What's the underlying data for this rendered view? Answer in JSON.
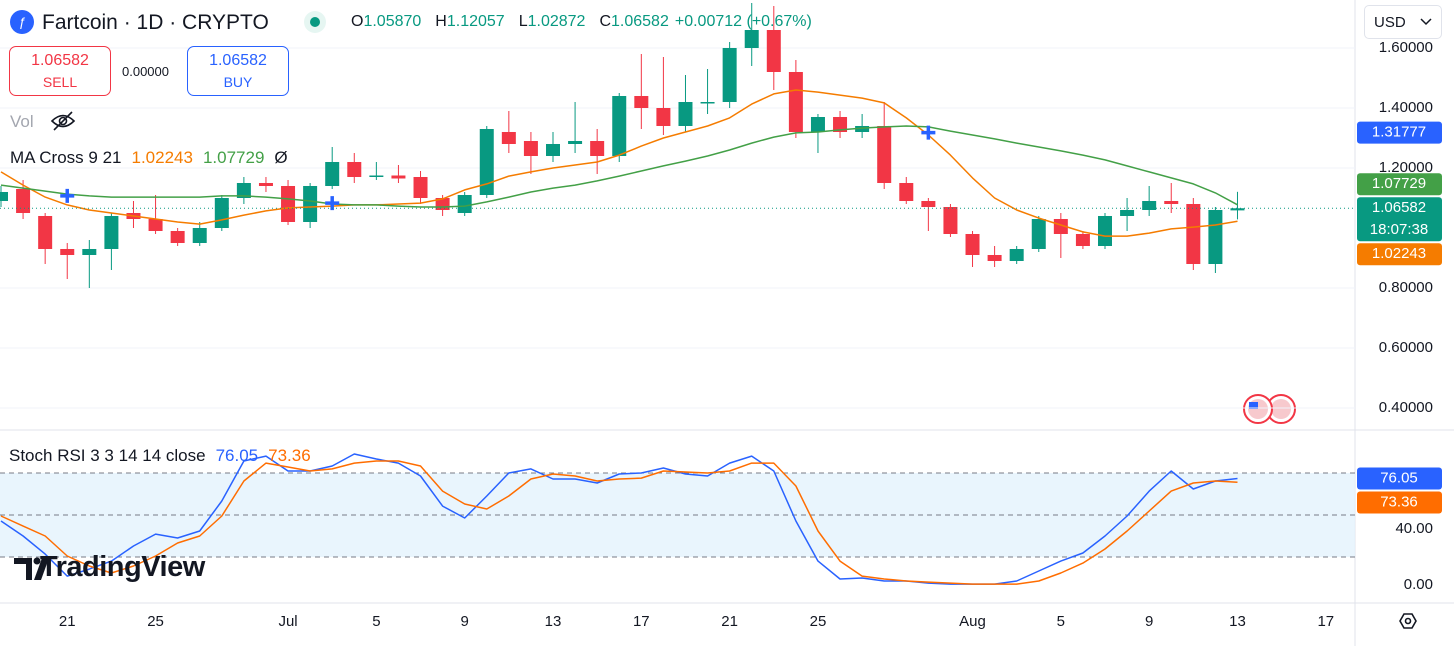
{
  "header": {
    "symbol": "Fartcoin · 1D · CRYPTO",
    "ohlc": [
      {
        "key": "O",
        "value": "1.05870"
      },
      {
        "key": "H",
        "value": "1.12057"
      },
      {
        "key": "L",
        "value": "1.02872"
      },
      {
        "key": "C",
        "value": "1.06582"
      }
    ],
    "change": "+0.00712 (+0.67%)"
  },
  "trade": {
    "sell_price": "1.06582",
    "sell_label": "SELL",
    "spread": "0.00000",
    "buy_price": "1.06582",
    "buy_label": "BUY"
  },
  "currency": "USD",
  "watermark": "TradingView",
  "chart_data": [
    {
      "type": "candlestick",
      "volume_label": "Vol",
      "indicator_label": "MA Cross 9 21",
      "indicator_suffix": "Ø",
      "categories": [
        null,
        null,
        null,
        "21",
        null,
        null,
        null,
        "25",
        null,
        null,
        null,
        null,
        null,
        "Jul",
        null,
        null,
        null,
        "5",
        null,
        null,
        null,
        "9",
        null,
        null,
        null,
        "13",
        null,
        null,
        null,
        "17",
        null,
        null,
        null,
        "21",
        null,
        null,
        null,
        "25",
        null,
        null,
        null,
        null,
        null,
        null,
        "Aug",
        null,
        null,
        null,
        "5",
        null,
        null,
        null,
        "9",
        null,
        null,
        null,
        "13",
        null,
        null,
        null,
        "17"
      ],
      "open": [
        1.09,
        1.13,
        1.04,
        0.93,
        0.91,
        0.93,
        1.05,
        1.03,
        0.99,
        0.95,
        1.0,
        1.1,
        1.15,
        1.14,
        1.02,
        1.14,
        1.22,
        1.17,
        1.175,
        1.17,
        1.1,
        1.05,
        1.11,
        1.32,
        1.29,
        1.24,
        1.28,
        1.29,
        1.24,
        1.44,
        1.4,
        1.34,
        1.415,
        1.42,
        1.6,
        1.66,
        1.52,
        1.32,
        1.37,
        1.32,
        1.34,
        1.15,
        1.09,
        1.07,
        0.98,
        0.91,
        0.89,
        0.93,
        1.03,
        0.98,
        0.94,
        1.04,
        1.06,
        1.09,
        1.08,
        0.88,
        1.0587,
        null,
        null,
        null,
        null
      ],
      "high": [
        1.14,
        1.16,
        1.05,
        0.95,
        0.96,
        1.05,
        1.09,
        1.11,
        1.0,
        1.02,
        1.11,
        1.17,
        1.17,
        1.16,
        1.15,
        1.27,
        1.25,
        1.22,
        1.21,
        1.19,
        1.11,
        1.12,
        1.34,
        1.39,
        1.32,
        1.32,
        1.42,
        1.33,
        1.45,
        1.58,
        1.57,
        1.51,
        1.53,
        1.62,
        1.75,
        1.74,
        1.56,
        1.38,
        1.39,
        1.38,
        1.42,
        1.17,
        1.1,
        1.08,
        0.99,
        0.94,
        0.94,
        1.04,
        1.05,
        0.99,
        1.05,
        1.1,
        1.14,
        1.15,
        1.1,
        1.07,
        1.12057,
        null,
        null,
        null,
        null
      ],
      "low": [
        1.07,
        1.03,
        0.88,
        0.83,
        0.8,
        0.86,
        1.0,
        0.98,
        0.94,
        0.94,
        0.99,
        1.08,
        1.12,
        1.01,
        1.0,
        1.13,
        1.15,
        1.16,
        1.15,
        1.08,
        1.04,
        1.04,
        1.1,
        1.25,
        1.18,
        1.22,
        1.25,
        1.18,
        1.22,
        1.33,
        1.31,
        1.32,
        1.38,
        1.4,
        1.54,
        1.46,
        1.3,
        1.25,
        1.3,
        1.3,
        1.13,
        1.08,
        0.99,
        0.97,
        0.87,
        0.87,
        0.88,
        0.92,
        0.9,
        0.93,
        0.93,
        0.99,
        1.04,
        1.05,
        0.86,
        0.85,
        1.02872,
        null,
        null,
        null,
        null
      ],
      "close": [
        1.12,
        1.05,
        0.93,
        0.91,
        0.93,
        1.04,
        1.03,
        0.99,
        0.95,
        1.0,
        1.1,
        1.15,
        1.14,
        1.02,
        1.14,
        1.22,
        1.17,
        1.175,
        1.165,
        1.1,
        1.06,
        1.11,
        1.33,
        1.28,
        1.24,
        1.28,
        1.29,
        1.24,
        1.44,
        1.4,
        1.34,
        1.42,
        1.42,
        1.6,
        1.66,
        1.52,
        1.32,
        1.37,
        1.32,
        1.34,
        1.15,
        1.09,
        1.07,
        0.98,
        0.91,
        0.89,
        0.93,
        1.03,
        0.98,
        0.94,
        1.04,
        1.06,
        1.09,
        1.08,
        0.88,
        1.06,
        1.06582,
        null,
        null,
        null,
        null
      ],
      "up_color": "#089981",
      "down_color": "#f23645",
      "last_price_label": "1.06582",
      "countdown": "18:07:38",
      "series": [
        {
          "color": "#f57c00",
          "last_label": "1.02243",
          "values": [
            1.187,
            1.143,
            1.103,
            1.077,
            1.06,
            1.05,
            1.04,
            1.03,
            1.02,
            1.013,
            1.027,
            1.043,
            1.057,
            1.067,
            1.07,
            1.073,
            1.077,
            1.077,
            1.08,
            1.083,
            1.097,
            1.127,
            1.147,
            1.173,
            1.187,
            1.2,
            1.21,
            1.22,
            1.243,
            1.273,
            1.3,
            1.32,
            1.34,
            1.367,
            1.413,
            1.447,
            1.46,
            1.453,
            1.443,
            1.433,
            1.417,
            1.367,
            1.31,
            1.243,
            1.167,
            1.1,
            1.06,
            1.033,
            1.01,
            0.987,
            0.973,
            0.973,
            0.983,
            0.997,
            1.003,
            1.01,
            1.02243,
            null,
            null,
            null,
            null
          ]
        },
        {
          "color": "#43a047",
          "last_label": "1.07729",
          "values": [
            1.143,
            1.133,
            1.123,
            1.113,
            1.107,
            1.103,
            1.103,
            1.103,
            1.103,
            1.103,
            1.107,
            1.107,
            1.103,
            1.097,
            1.09,
            1.08,
            1.077,
            1.077,
            1.073,
            1.07,
            1.07,
            1.073,
            1.087,
            1.103,
            1.12,
            1.133,
            1.143,
            1.157,
            1.173,
            1.19,
            1.207,
            1.223,
            1.24,
            1.26,
            1.283,
            1.303,
            1.317,
            1.32,
            1.327,
            1.333,
            1.337,
            1.34,
            1.337,
            1.323,
            1.31,
            1.297,
            1.283,
            1.27,
            1.257,
            1.243,
            1.227,
            1.207,
            1.187,
            1.167,
            1.147,
            1.117,
            1.07729,
            null,
            null,
            null,
            null
          ]
        }
      ],
      "crosses": [
        null,
        null,
        null,
        1.107,
        null,
        null,
        null,
        null,
        null,
        null,
        null,
        null,
        null,
        null,
        null,
        1.083,
        null,
        null,
        null,
        null,
        null,
        null,
        null,
        null,
        null,
        null,
        null,
        null,
        null,
        null,
        null,
        null,
        null,
        null,
        null,
        null,
        null,
        null,
        null,
        null,
        null,
        null,
        1.31777,
        null,
        null,
        null,
        null,
        null,
        null,
        null,
        null,
        null,
        null,
        null,
        null,
        null,
        null,
        null,
        null,
        null,
        null
      ],
      "cross_color": "#2962ff",
      "cross_label": "1.31777",
      "ylim": [
        0.3333,
        1.76
      ],
      "yticks": [
        {
          "value": 0.4,
          "label": "0.40000"
        },
        {
          "value": 0.6,
          "label": "0.60000"
        },
        {
          "value": 0.8,
          "label": "0.80000"
        },
        {
          "value": 1.2,
          "label": "1.20000"
        },
        {
          "value": 1.4,
          "label": "1.40000"
        },
        {
          "value": 1.6,
          "label": "1.60000"
        }
      ],
      "grid": true
    },
    {
      "type": "line",
      "title": "Stoch RSI 3 3 14 14 close",
      "series": [
        {
          "color": "#2962ff",
          "last_label": "76.05",
          "values": [
            45.7,
            35,
            22.1,
            6.4,
            11.4,
            17.1,
            27.9,
            36.4,
            33.6,
            38.6,
            60,
            88.6,
            92.1,
            81.4,
            81.4,
            85,
            93.6,
            90,
            87.1,
            77.9,
            56.4,
            47.9,
            63.6,
            80,
            82.9,
            75.7,
            75.7,
            72.9,
            79.3,
            80,
            83.6,
            79.3,
            77.9,
            87.1,
            92.1,
            81.4,
            45.7,
            17.1,
            4.3,
            5,
            2.9,
            2.9,
            1.4,
            0.7,
            0.7,
            0.7,
            2.9,
            10,
            17.1,
            22.9,
            35,
            49.3,
            67.1,
            81.4,
            68.6,
            74.3,
            76.05,
            null,
            null,
            null,
            null
          ]
        },
        {
          "color": "#ff6d00",
          "last_label": "73.36",
          "values": [
            49.3,
            42.1,
            35,
            20.7,
            13.6,
            8.6,
            13.6,
            20.7,
            30,
            35,
            49.3,
            74.3,
            87.1,
            84.3,
            81.4,
            82.9,
            87.1,
            88.6,
            88.6,
            85,
            67.1,
            57.9,
            54.3,
            63.6,
            75.7,
            79.3,
            77.9,
            74.3,
            75.7,
            76.4,
            81.4,
            80.7,
            80,
            81.4,
            87.1,
            87.1,
            70.7,
            38.6,
            17.1,
            6.4,
            4.3,
            2.9,
            2.1,
            1.4,
            0.7,
            0.7,
            0.7,
            2.9,
            8.6,
            15.7,
            25.7,
            38.6,
            52.9,
            67.1,
            72.9,
            74.3,
            73.36,
            null,
            null,
            null,
            null
          ]
        }
      ],
      "levels": [
        80,
        50,
        20
      ],
      "band_color": "#e3f2fd",
      "ylim": [
        -11.4,
        110
      ],
      "yticks": [
        {
          "value": 40,
          "label": "40.00"
        },
        {
          "value": 0,
          "label": "0.00"
        }
      ]
    }
  ]
}
